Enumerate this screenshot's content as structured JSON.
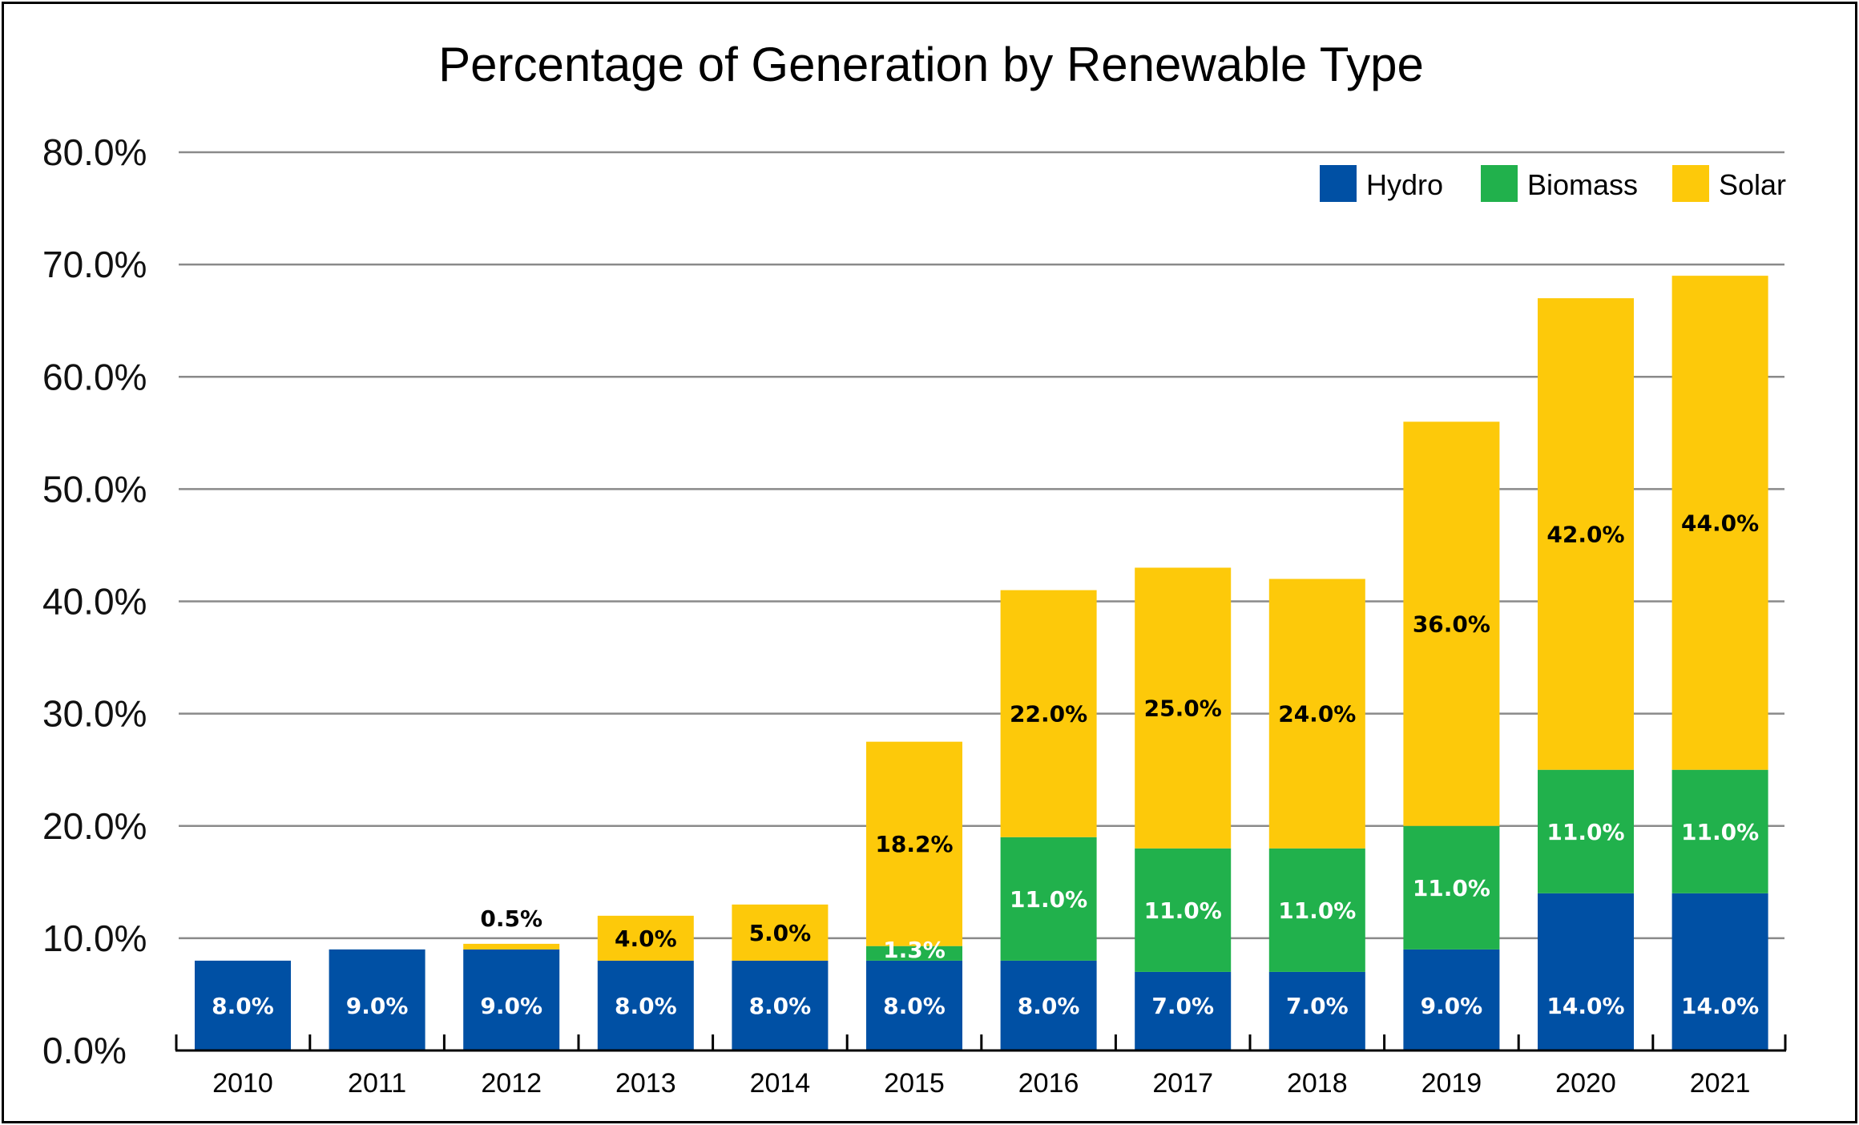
{
  "chart_data": {
    "type": "bar",
    "stacked": true,
    "title": "Percentage of Generation by Renewable Type",
    "xlabel": "",
    "ylabel": "",
    "ylim": [
      0,
      80
    ],
    "yticks": [
      "0.0%",
      "10.0%",
      "20.0%",
      "30.0%",
      "40.0%",
      "50.0%",
      "60.0%",
      "70.0%",
      "80.0%"
    ],
    "grid": true,
    "legend_position": "top-right",
    "categories": [
      "2010",
      "2011",
      "2012",
      "2013",
      "2014",
      "2015",
      "2016",
      "2017",
      "2018",
      "2019",
      "2020",
      "2021"
    ],
    "series": [
      {
        "name": "Hydro",
        "color": "#0050A4",
        "label_color": "#ffffff",
        "values": [
          8.0,
          9.0,
          9.0,
          8.0,
          8.0,
          8.0,
          8.0,
          7.0,
          7.0,
          9.0,
          14.0,
          14.0
        ],
        "labels": [
          "8.0%",
          "9.0%",
          "9.0%",
          "8.0%",
          "8.0%",
          "8.0%",
          "8.0%",
          "7.0%",
          "7.0%",
          "9.0%",
          "14.0%",
          "14.0%"
        ]
      },
      {
        "name": "Biomass",
        "color": "#21B14C",
        "label_color": "#ffffff",
        "values": [
          0,
          0,
          0,
          0,
          0,
          1.3,
          11.0,
          11.0,
          11.0,
          11.0,
          11.0,
          11.0
        ],
        "labels": [
          "",
          "",
          "",
          "",
          "",
          "1.3%",
          "11.0%",
          "11.0%",
          "11.0%",
          "11.0%",
          "11.0%",
          "11.0%"
        ]
      },
      {
        "name": "Solar",
        "color": "#FDC90A",
        "label_color": "#000000",
        "values": [
          0,
          0,
          0.5,
          4.0,
          5.0,
          18.2,
          22.0,
          25.0,
          24.0,
          36.0,
          42.0,
          44.0
        ],
        "labels": [
          "",
          "",
          "0.5%",
          "4.0%",
          "5.0%",
          "18.2%",
          "22.0%",
          "25.0%",
          "24.0%",
          "36.0%",
          "42.0%",
          "44.0%"
        ]
      }
    ]
  }
}
